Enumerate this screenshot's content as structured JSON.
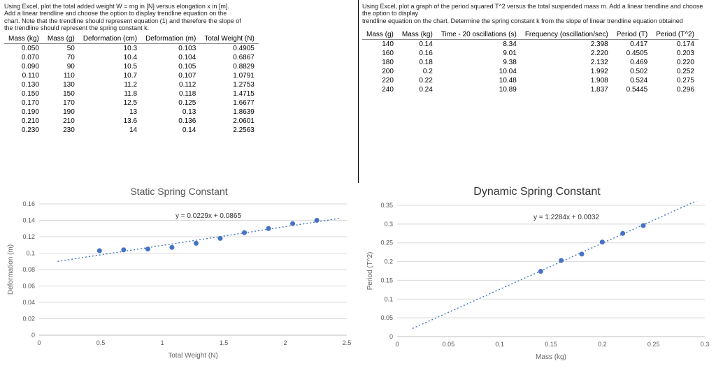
{
  "colors": {
    "series": "#4472c4",
    "grid": "#d9d9d9",
    "axis_text": "#595959",
    "bg": "#ffffff"
  },
  "left": {
    "instructions": [
      "Using Excel, plot the total added weight W = mg in [N] versus elongation x in [m].",
      "Add a linear trendline and choose the option to display trendline equation on the",
      "chart. Note that the trendline should represent equation (1) and therefore the slope of",
      "the trendline should represent the spring constant k."
    ],
    "columns": [
      "Mass (kg)",
      "Mass (g)",
      "Deformation (cm)",
      "Deformation (m)",
      "Total Weight (N)"
    ],
    "rows": [
      [
        "0.050",
        "50",
        "10.3",
        "0.103",
        "0.4905"
      ],
      [
        "0.070",
        "70",
        "10.4",
        "0.104",
        "0.6867"
      ],
      [
        "0.090",
        "90",
        "10.5",
        "0.105",
        "0.8829"
      ],
      [
        "0.110",
        "110",
        "10.7",
        "0.107",
        "1.0791"
      ],
      [
        "0.130",
        "130",
        "11.2",
        "0.112",
        "1.2753"
      ],
      [
        "0.150",
        "150",
        "11.8",
        "0.118",
        "1.4715"
      ],
      [
        "0.170",
        "170",
        "12.5",
        "0.125",
        "1.6677"
      ],
      [
        "0.190",
        "190",
        "13",
        "0.13",
        "1.8639"
      ],
      [
        "0.210",
        "210",
        "13.6",
        "0.136",
        "2.0601"
      ],
      [
        "0.230",
        "230",
        "14",
        "0.14",
        "2.2563"
      ]
    ]
  },
  "right": {
    "instructions": [
      "Using Excel, plot a graph of the period squared T^2 versus the total suspended mass m. Add a linear trendline and choose the option to display",
      "trendline equation on the chart. Determine the spring constant k from the slope of linear trendline equation obtained"
    ],
    "columns": [
      "Mass (g)",
      "Mass (kg)",
      "Time - 20 oscillations (s)",
      "Frequency  (oscillation/sec)",
      "Period (T)",
      "Period (T^2)"
    ],
    "rows": [
      [
        "140",
        "0.14",
        "8.34",
        "2.398",
        "0.417",
        "0.174"
      ],
      [
        "160",
        "0.16",
        "9.01",
        "2.220",
        "0.4505",
        "0.203"
      ],
      [
        "180",
        "0.18",
        "9.38",
        "2.132",
        "0.469",
        "0.220"
      ],
      [
        "200",
        "0.2",
        "10.04",
        "1.992",
        "0.502",
        "0.252"
      ],
      [
        "220",
        "0.22",
        "10.48",
        "1.908",
        "0.524",
        "0.275"
      ],
      [
        "240",
        "0.24",
        "10.89",
        "1.837",
        "0.5445",
        "0.296"
      ]
    ]
  },
  "chart_static": {
    "title": "Static Spring Constant",
    "xlabel": "Total Weight (N)",
    "ylabel": "Deformation (m)",
    "equation": "y = 0.0229x + 0.0865",
    "xlim": [
      0,
      2.5
    ],
    "xtick_step": 0.5,
    "ylim": [
      0,
      0.16
    ],
    "ytick_step": 0.02,
    "points": [
      [
        0.4905,
        0.103
      ],
      [
        0.6867,
        0.104
      ],
      [
        0.8829,
        0.105
      ],
      [
        1.0791,
        0.107
      ],
      [
        1.2753,
        0.112
      ],
      [
        1.4715,
        0.118
      ],
      [
        1.6677,
        0.125
      ],
      [
        1.8639,
        0.13
      ],
      [
        2.0601,
        0.136
      ],
      [
        2.2563,
        0.14
      ]
    ],
    "trend": {
      "m": 0.0229,
      "b": 0.0865
    },
    "marker_color": "#4472c4",
    "trend_color": "#4472c4",
    "grid_color": "#d9d9d9"
  },
  "chart_dynamic": {
    "title": "Dynamic Spring Constant",
    "xlabel": "Mass (kg)",
    "ylabel": "Period (T^2)",
    "equation": "y = 1.2284x + 0.0032",
    "xlim": [
      0,
      0.3
    ],
    "xtick_step": 0.05,
    "ylim": [
      0,
      0.35
    ],
    "ytick_step": 0.05,
    "points": [
      [
        0.14,
        0.174
      ],
      [
        0.16,
        0.203
      ],
      [
        0.18,
        0.22
      ],
      [
        0.2,
        0.252
      ],
      [
        0.22,
        0.275
      ],
      [
        0.24,
        0.296
      ]
    ],
    "trend": {
      "m": 1.2284,
      "b": 0.0032
    },
    "marker_color": "#4472c4",
    "trend_color": "#4472c4",
    "grid_color": "#d9d9d9"
  }
}
